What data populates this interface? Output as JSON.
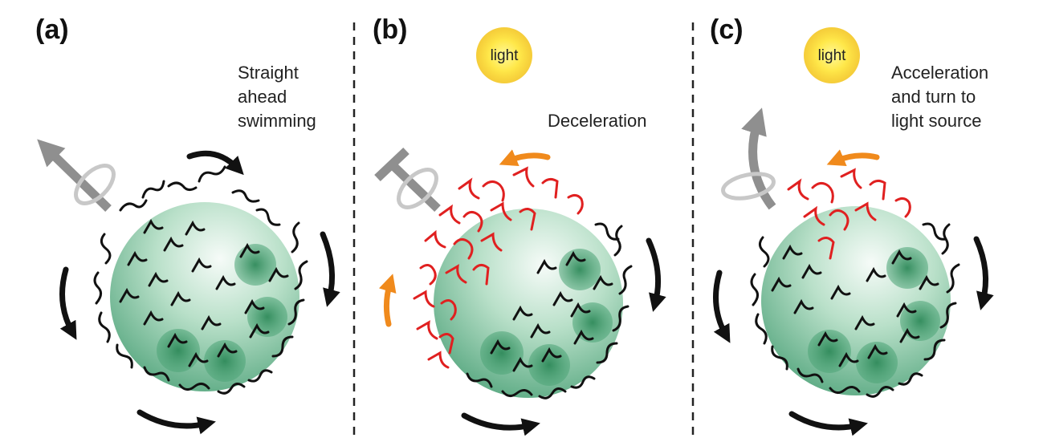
{
  "panels": [
    {
      "label": "(a)",
      "caption_lines": [
        "Straight",
        "ahead",
        "swimming"
      ]
    },
    {
      "label": "(b)",
      "light": "light",
      "caption_lines": [
        "Deceleration"
      ]
    },
    {
      "label": "(c)",
      "light": "light",
      "caption_lines": [
        "Acceleration",
        "and turn to",
        "light source"
      ]
    }
  ],
  "colors": {
    "sphere_light": "#f4faf6",
    "sphere_mid": "#a8d8bc",
    "sphere_dark": "#5fae86",
    "daughter": "#3f9a6b",
    "flagella_normal": "#111111",
    "flagella_reversed": "#e02020",
    "rotation_arrow": "#111111",
    "counter_arrow": "#f08a1c",
    "axis_arrow": "#8f8f8f",
    "axis_ring": "#c8c8c8",
    "light_center": "#fff47a",
    "light_edge": "#f2c418"
  }
}
